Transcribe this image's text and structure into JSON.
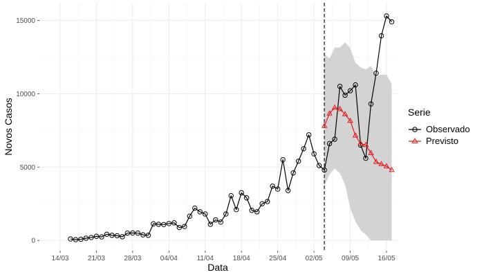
{
  "chart_data": {
    "type": "line",
    "xlabel": "Data",
    "ylabel": "Novos Casos",
    "ylim": [
      -700,
      16200
    ],
    "y_ticks": [
      0,
      5000,
      10000,
      15000
    ],
    "x_ticks": [
      {
        "date": "2020-03-14",
        "label": "14/03"
      },
      {
        "date": "2020-03-21",
        "label": "21/03"
      },
      {
        "date": "2020-03-28",
        "label": "28/03"
      },
      {
        "date": "2020-04-04",
        "label": "04/04"
      },
      {
        "date": "2020-04-11",
        "label": "11/04"
      },
      {
        "date": "2020-04-18",
        "label": "18/04"
      },
      {
        "date": "2020-04-25",
        "label": "25/04"
      },
      {
        "date": "2020-05-02",
        "label": "02/05"
      },
      {
        "date": "2020-05-09",
        "label": "09/05"
      },
      {
        "date": "2020-05-16",
        "label": "16/05"
      }
    ],
    "xlim": [
      "2020-03-10",
      "2020-05-18"
    ],
    "forecast_start": "2020-05-04",
    "grid": true,
    "legend": {
      "title": "Serie",
      "position": "right"
    },
    "series": [
      {
        "name": "Observado",
        "color": "#000000",
        "marker": "circle",
        "x": [
          "2020-03-16",
          "2020-03-17",
          "2020-03-18",
          "2020-03-19",
          "2020-03-20",
          "2020-03-21",
          "2020-03-22",
          "2020-03-23",
          "2020-03-24",
          "2020-03-25",
          "2020-03-26",
          "2020-03-27",
          "2020-03-28",
          "2020-03-29",
          "2020-03-30",
          "2020-03-31",
          "2020-04-01",
          "2020-04-02",
          "2020-04-03",
          "2020-04-04",
          "2020-04-05",
          "2020-04-06",
          "2020-04-07",
          "2020-04-08",
          "2020-04-09",
          "2020-04-10",
          "2020-04-11",
          "2020-04-12",
          "2020-04-13",
          "2020-04-14",
          "2020-04-15",
          "2020-04-16",
          "2020-04-17",
          "2020-04-18",
          "2020-04-19",
          "2020-04-20",
          "2020-04-21",
          "2020-04-22",
          "2020-04-23",
          "2020-04-24",
          "2020-04-25",
          "2020-04-26",
          "2020-04-27",
          "2020-04-28",
          "2020-04-29",
          "2020-04-30",
          "2020-05-01",
          "2020-05-02",
          "2020-05-03",
          "2020-05-04",
          "2020-05-05",
          "2020-05-06",
          "2020-05-07",
          "2020-05-08",
          "2020-05-09",
          "2020-05-10",
          "2020-05-11",
          "2020-05-12",
          "2020-05-13",
          "2020-05-14",
          "2020-05-15",
          "2020-05-16",
          "2020-05-17"
        ],
        "y": [
          100,
          50,
          80,
          150,
          200,
          280,
          240,
          420,
          350,
          320,
          250,
          500,
          510,
          500,
          380,
          350,
          1130,
          1100,
          1080,
          1150,
          1200,
          880,
          950,
          1650,
          2200,
          1950,
          1800,
          1100,
          1400,
          1250,
          1800,
          3050,
          2100,
          3250,
          2900,
          2050,
          1950,
          2500,
          2650,
          3700,
          3500,
          5500,
          3400,
          4600,
          5400,
          6250,
          7200,
          5900,
          5100,
          4800,
          6600,
          6900,
          10500,
          9900,
          10200,
          10600,
          6500,
          5600,
          9300,
          11400,
          13950,
          15300,
          14900
        ]
      },
      {
        "name": "Previsto",
        "color": "#e31a1c",
        "marker": "triangle",
        "x": [
          "2020-05-04",
          "2020-05-05",
          "2020-05-06",
          "2020-05-07",
          "2020-05-08",
          "2020-05-09",
          "2020-05-10",
          "2020-05-11",
          "2020-05-12",
          "2020-05-13",
          "2020-05-14",
          "2020-05-15",
          "2020-05-16",
          "2020-05-17"
        ],
        "y": [
          7800,
          8650,
          9050,
          8950,
          8600,
          8150,
          7150,
          6600,
          6500,
          5950,
          5350,
          5200,
          5050,
          4800
        ]
      }
    ],
    "interval": {
      "color": "#d3d3d3",
      "x": [
        "2020-05-04",
        "2020-05-05",
        "2020-05-06",
        "2020-05-07",
        "2020-05-08",
        "2020-05-09",
        "2020-05-10",
        "2020-05-11",
        "2020-05-12",
        "2020-05-13",
        "2020-05-14",
        "2020-05-15",
        "2020-05-16",
        "2020-05-17"
      ],
      "lower": [
        3700,
        4500,
        4900,
        4600,
        3800,
        2200,
        1300,
        700,
        400,
        0,
        0,
        0,
        0,
        0
      ],
      "upper": [
        12700,
        12400,
        13150,
        13150,
        13500,
        13100,
        12100,
        11800,
        11650,
        11900,
        11200,
        11300,
        11300,
        10650
      ]
    }
  }
}
